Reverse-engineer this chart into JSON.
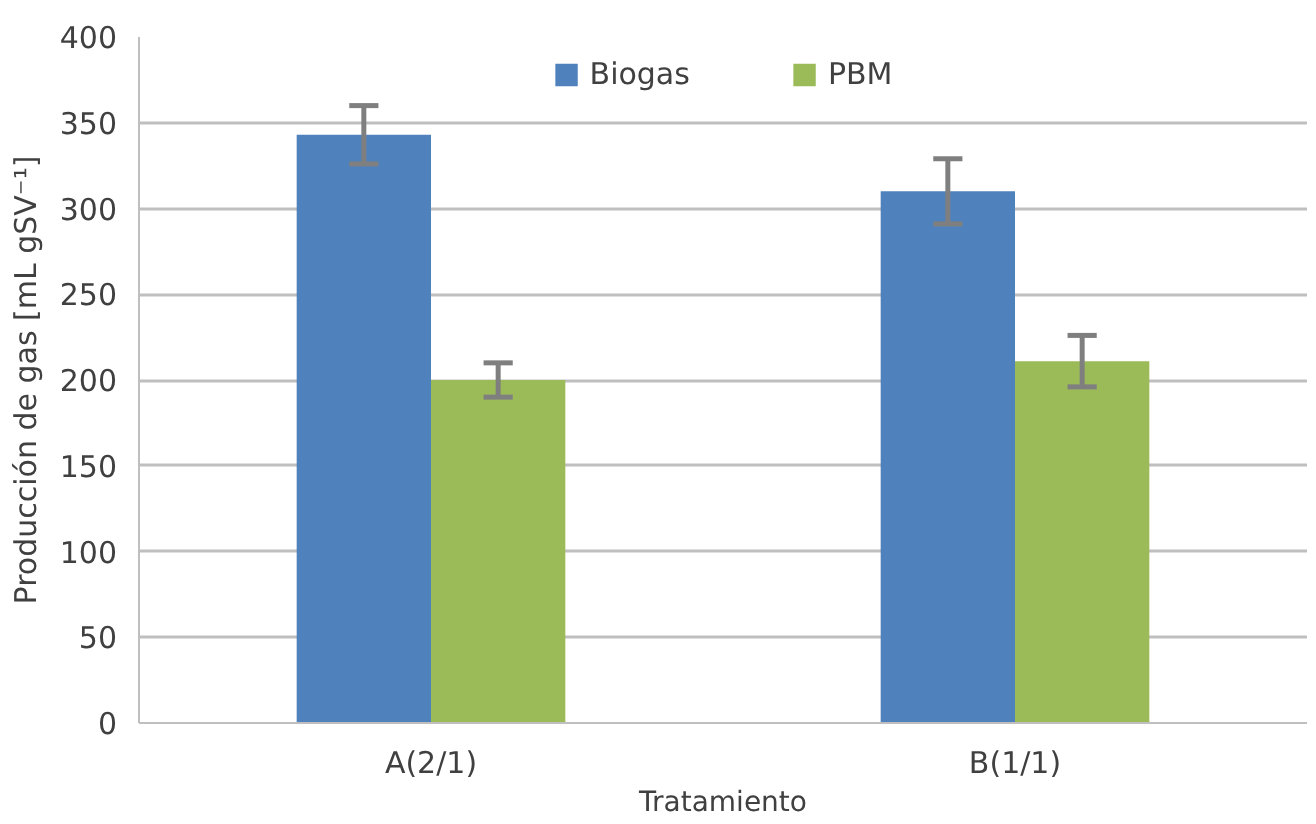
{
  "chart_data": {
    "type": "bar",
    "xlabel": "Tratamiento",
    "ylabel": "Producción de gas [mL gSV⁻¹]",
    "categories": [
      "A(2/1)",
      "B(1/1)"
    ],
    "series": [
      {
        "name": "Biogas",
        "color": "#4f81bd",
        "values": [
          343,
          310
        ],
        "errors": [
          17,
          19
        ]
      },
      {
        "name": "PBM",
        "color": "#9bbb59",
        "values": [
          200,
          211
        ],
        "errors": [
          10,
          15
        ]
      }
    ],
    "ylim": [
      0,
      400
    ],
    "yticks": [
      0,
      50,
      100,
      150,
      200,
      250,
      300,
      350,
      400
    ],
    "grid": "y",
    "legend": "top"
  }
}
